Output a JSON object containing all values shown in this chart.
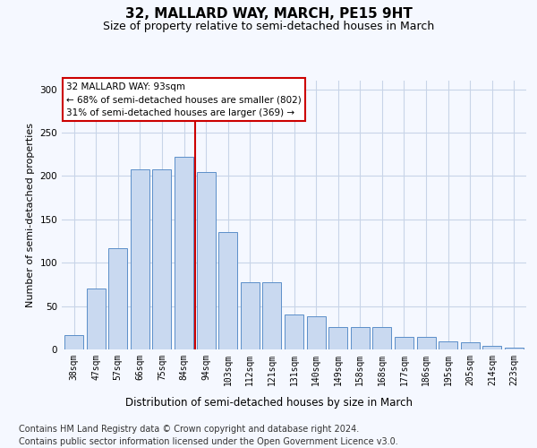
{
  "title": "32, MALLARD WAY, MARCH, PE15 9HT",
  "subtitle": "Size of property relative to semi-detached houses in March",
  "xlabel": "Distribution of semi-detached houses by size in March",
  "ylabel": "Number of semi-detached properties",
  "categories": [
    "38sqm",
    "47sqm",
    "57sqm",
    "66sqm",
    "75sqm",
    "84sqm",
    "94sqm",
    "103sqm",
    "112sqm",
    "121sqm",
    "131sqm",
    "140sqm",
    "149sqm",
    "158sqm",
    "168sqm",
    "177sqm",
    "186sqm",
    "195sqm",
    "205sqm",
    "214sqm",
    "223sqm"
  ],
  "values": [
    17,
    70,
    117,
    208,
    208,
    222,
    205,
    135,
    78,
    78,
    40,
    38,
    26,
    26,
    26,
    14,
    14,
    9,
    8,
    4,
    2
  ],
  "bar_color": "#c9d9f0",
  "bar_edge_color": "#5b8fc9",
  "vline_color": "#cc0000",
  "annotation_text": "32 MALLARD WAY: 93sqm\n← 68% of semi-detached houses are smaller (802)\n31% of semi-detached houses are larger (369) →",
  "annotation_box_color": "#ffffff",
  "annotation_box_edge_color": "#cc0000",
  "footer_line1": "Contains HM Land Registry data © Crown copyright and database right 2024.",
  "footer_line2": "Contains public sector information licensed under the Open Government Licence v3.0.",
  "background_color": "#f5f8ff",
  "grid_color": "#c8d4e8",
  "ylim": [
    0,
    310
  ],
  "title_fontsize": 11,
  "subtitle_fontsize": 9,
  "footer_fontsize": 7,
  "ylabel_fontsize": 8,
  "xlabel_fontsize": 8.5,
  "tick_fontsize": 7,
  "annot_fontsize": 7.5
}
